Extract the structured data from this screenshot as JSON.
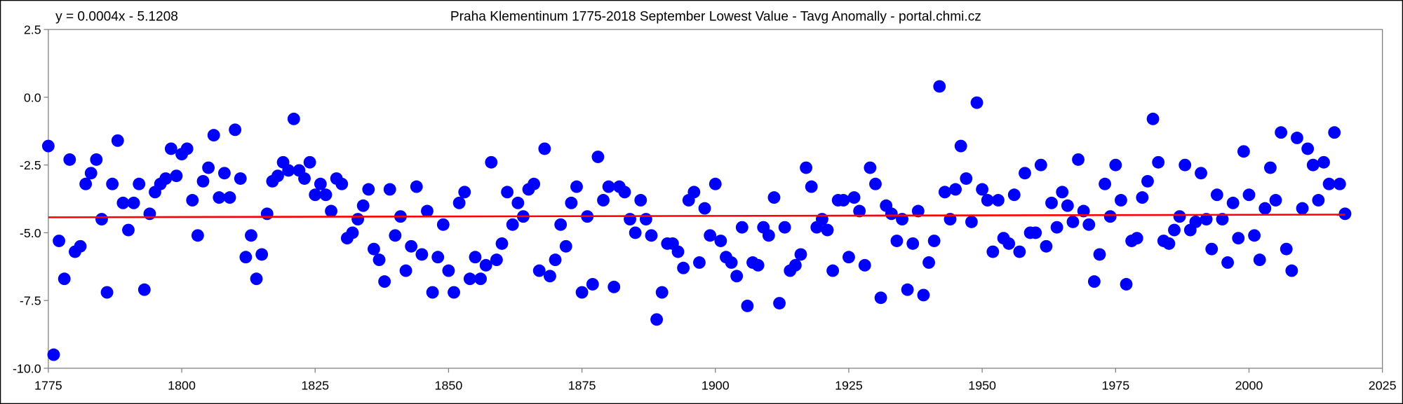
{
  "chart_data": {
    "type": "scatter",
    "title": "Praha Klementinum 1775-2018 September Lowest Value - Tavg Anomally - portal.chmi.cz",
    "trendline_label": "y = 0.0004x - 5.1208",
    "xlabel": "",
    "ylabel": "",
    "xlim": [
      1775,
      2025
    ],
    "ylim": [
      -10,
      2.5
    ],
    "x_ticks": [
      "1775",
      "1800",
      "1825",
      "1850",
      "1875",
      "1900",
      "1925",
      "1950",
      "1975",
      "2000",
      "2025"
    ],
    "y_ticks": [
      "2.5",
      "0.0",
      "-2.5",
      "-5.0",
      "-7.5",
      "-10.0"
    ],
    "grid": false,
    "x_start": 1775,
    "values": [
      -1.8,
      -9.5,
      -5.3,
      -6.7,
      -2.3,
      -5.7,
      -5.5,
      -3.2,
      -2.8,
      -2.3,
      -4.5,
      -7.2,
      -3.2,
      -1.6,
      -3.9,
      -4.9,
      -3.9,
      -3.2,
      -7.1,
      -4.3,
      -3.5,
      -3.2,
      -3.0,
      -1.9,
      -2.9,
      -2.1,
      -1.9,
      -3.8,
      -5.1,
      -3.1,
      -2.6,
      -1.4,
      -3.7,
      -2.8,
      -3.7,
      -1.2,
      -3.0,
      -5.9,
      -5.1,
      -6.7,
      -5.8,
      -4.3,
      -3.1,
      -2.9,
      -2.4,
      -2.7,
      -0.8,
      -2.7,
      -3.0,
      -2.4,
      -3.6,
      -3.2,
      -3.6,
      -4.2,
      -3.0,
      -3.2,
      -5.2,
      -5.0,
      -4.5,
      -4.0,
      -3.4,
      -5.6,
      -6.0,
      -6.8,
      -3.4,
      -5.1,
      -4.4,
      -6.4,
      -5.5,
      -3.3,
      -5.8,
      -4.2,
      -7.2,
      -5.9,
      -4.7,
      -6.4,
      -7.2,
      -3.9,
      -3.5,
      -6.7,
      -5.9,
      -6.7,
      -6.2,
      -2.4,
      -6.0,
      -5.4,
      -3.5,
      -4.7,
      -3.9,
      -4.4,
      -3.4,
      -3.2,
      -6.4,
      -1.9,
      -6.6,
      -6.0,
      -4.7,
      -5.5,
      -3.9,
      -3.3,
      -7.2,
      -4.4,
      -6.9,
      -2.2,
      -3.8,
      -3.3,
      -7.0,
      -3.3,
      -3.5,
      -4.5,
      -5.0,
      -3.8,
      -4.5,
      -5.1,
      -8.2,
      -7.2,
      -5.4,
      -5.4,
      -5.7,
      -6.3,
      -3.8,
      -3.5,
      -6.1,
      -4.1,
      -5.1,
      -3.2,
      -5.3,
      -5.9,
      -6.1,
      -6.6,
      -4.8,
      -7.7,
      -6.1,
      -6.2,
      -4.8,
      -5.1,
      -3.7,
      -7.6,
      -4.8,
      -6.4,
      -6.2,
      -5.8,
      -2.6,
      -3.3,
      -4.8,
      -4.5,
      -4.9,
      -6.4,
      -3.8,
      -3.8,
      -5.9,
      -3.7,
      -4.2,
      -6.2,
      -2.6,
      -3.2,
      -7.4,
      -4.0,
      -4.3,
      -5.3,
      -4.5,
      -7.1,
      -5.4,
      -4.2,
      -7.3,
      -6.1,
      -5.3,
      0.4,
      -3.5,
      -4.5,
      -3.4,
      -1.8,
      -3.0,
      -4.6,
      -0.2,
      -3.4,
      -3.8,
      -5.7,
      -3.8,
      -5.2,
      -5.4,
      -3.6,
      -5.7,
      -2.8,
      -5.0,
      -5.0,
      -2.5,
      -5.5,
      -3.9,
      -4.8,
      -3.5,
      -4.0,
      -4.6,
      -2.3,
      -4.2,
      -4.7,
      -6.8,
      -5.8,
      -3.2,
      -4.4,
      -2.5,
      -3.8,
      -6.9,
      -5.3,
      -5.2,
      -3.7,
      -3.1,
      -0.8,
      -2.4,
      -5.3,
      -5.4,
      -4.9,
      -4.4,
      -2.5,
      -4.9,
      -4.6,
      -2.8,
      -4.5,
      -5.6,
      -3.6,
      -4.5,
      -6.1,
      -3.9,
      -5.2,
      -2.0,
      -3.6,
      -5.1,
      -6.0,
      -4.1,
      -2.6,
      -3.8,
      -1.3,
      -5.6,
      -6.4,
      -1.5,
      -4.1,
      -1.9,
      -2.5,
      -3.8,
      -2.4,
      -3.2,
      -1.3,
      -3.2,
      -4.3
    ],
    "trendline": {
      "x": [
        1775,
        2018
      ],
      "y": [
        -4.43,
        -4.33
      ]
    },
    "colors": {
      "points": "#0000ff",
      "trendline": "#ff0000",
      "axis": "#808080"
    }
  }
}
